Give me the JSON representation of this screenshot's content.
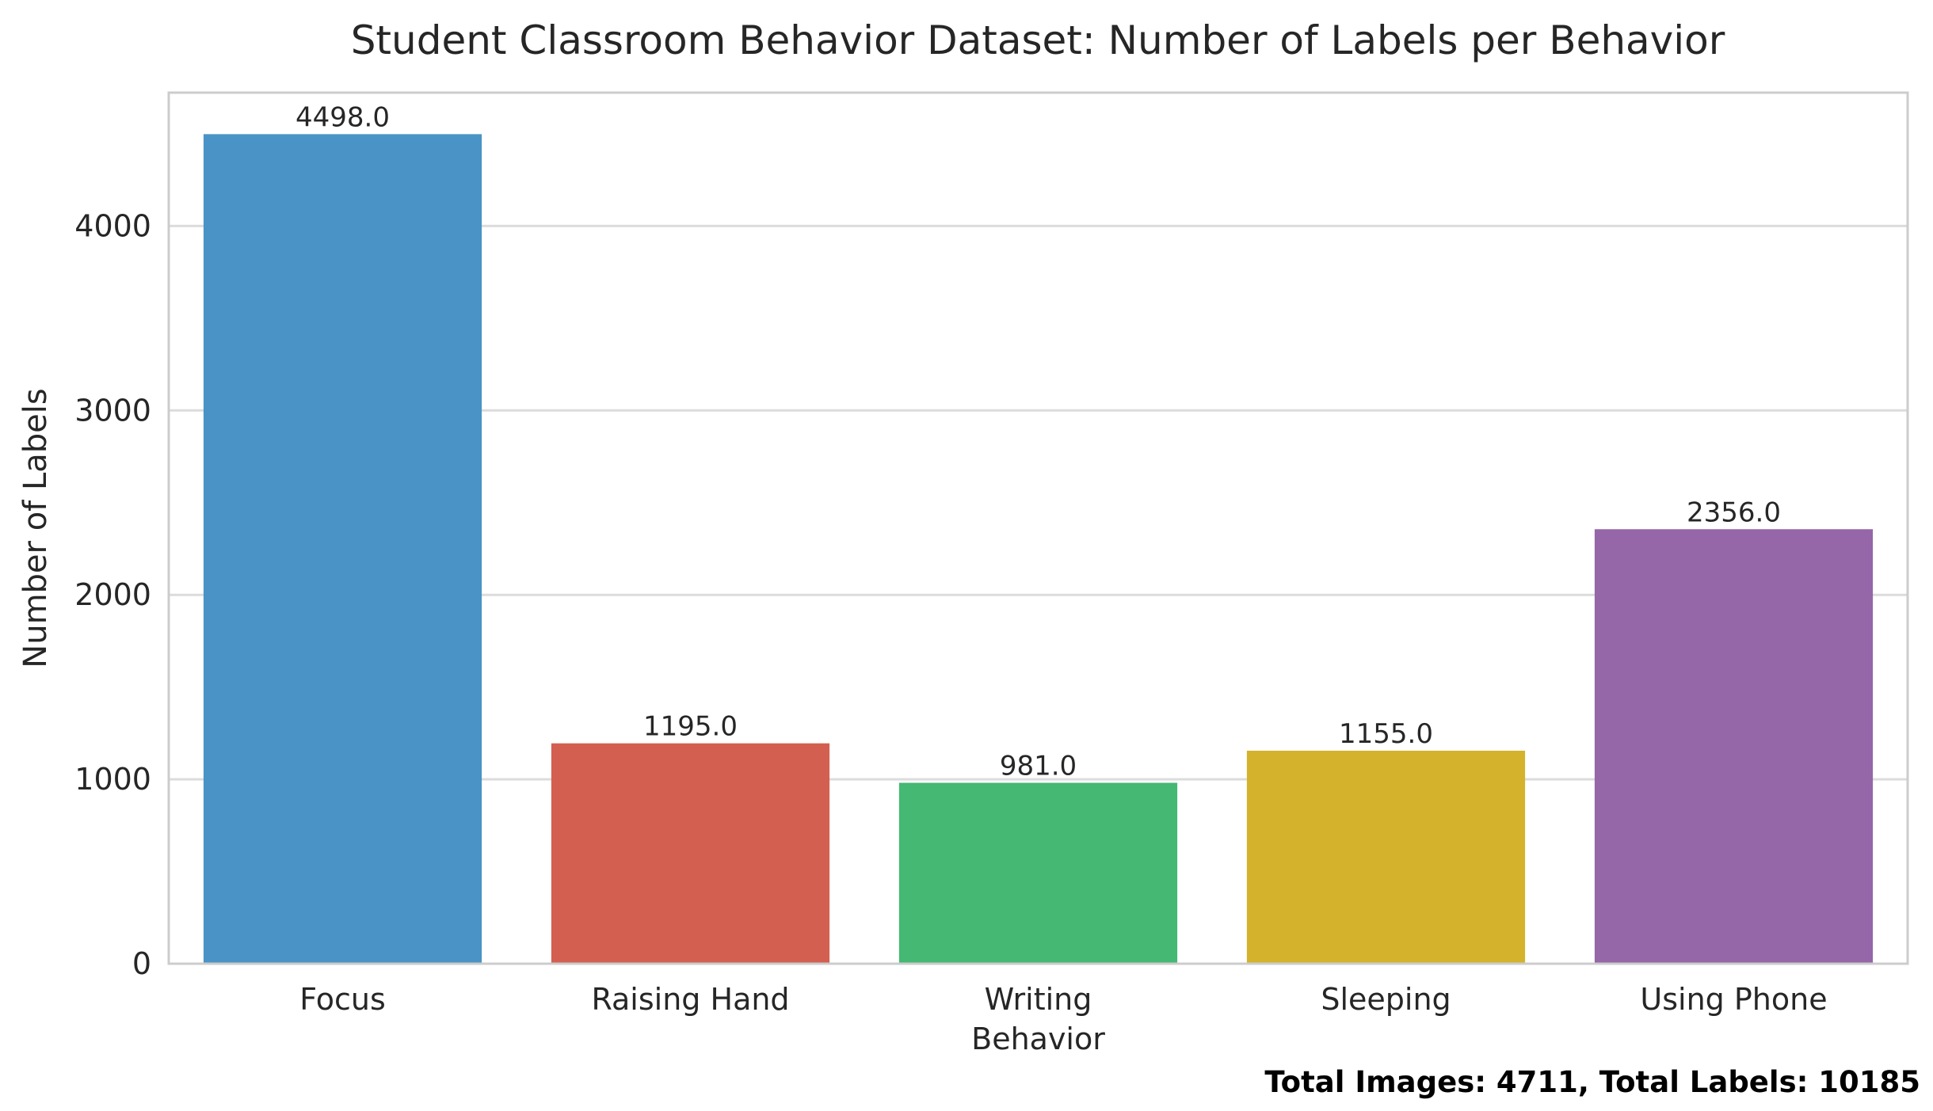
{
  "chart_data": {
    "type": "bar",
    "title": "Student Classroom Behavior Dataset: Number of Labels per Behavior",
    "xlabel": "",
    "ylabel": "Number of Labels",
    "categories": [
      [
        "Focus"
      ],
      [
        "Raising Hand"
      ],
      [
        "Writing",
        "Behavior"
      ],
      [
        "Sleeping"
      ],
      [
        "Using Phone"
      ]
    ],
    "values": [
      4498.0,
      1195.0,
      981.0,
      1155.0,
      2356.0
    ],
    "value_labels": [
      "4498.0",
      "1195.0",
      "981.0",
      "1155.0",
      "2356.0"
    ],
    "colors": [
      "#4a93c6",
      "#d35f50",
      "#45b874",
      "#d4b22c",
      "#9566a8"
    ],
    "yticks": [
      0,
      1000,
      2000,
      3000,
      4000
    ],
    "ylim": [
      0,
      4723
    ],
    "grid": true,
    "footnote": "Total Images: 4711, Total Labels: 10185"
  }
}
